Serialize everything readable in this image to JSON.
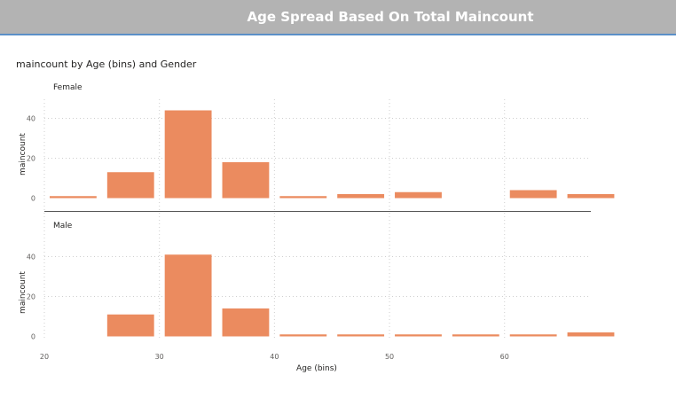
{
  "header": {
    "title": "Age Spread Based On Total Maincount"
  },
  "chart_data": {
    "type": "bar",
    "title": "maincount by Age (bins) and Gender",
    "xlabel": "Age (bins)",
    "ylabel": "maincount",
    "x_ticks": [
      20,
      30,
      40,
      50,
      60
    ],
    "y_ticks": [
      0,
      20,
      40
    ],
    "ylim": [
      0,
      48
    ],
    "categories": [
      20,
      25,
      30,
      35,
      40,
      45,
      50,
      55,
      60,
      65
    ],
    "bin_width": 5,
    "grid": true,
    "colors": {
      "bar": "#eb8b5f"
    },
    "series": [
      {
        "name": "Female",
        "values": [
          1,
          13,
          44,
          18,
          1,
          2,
          3,
          0,
          4,
          2
        ]
      },
      {
        "name": "Male",
        "values": [
          0,
          11,
          41,
          14,
          1,
          1,
          1,
          1,
          1,
          2
        ]
      }
    ]
  }
}
